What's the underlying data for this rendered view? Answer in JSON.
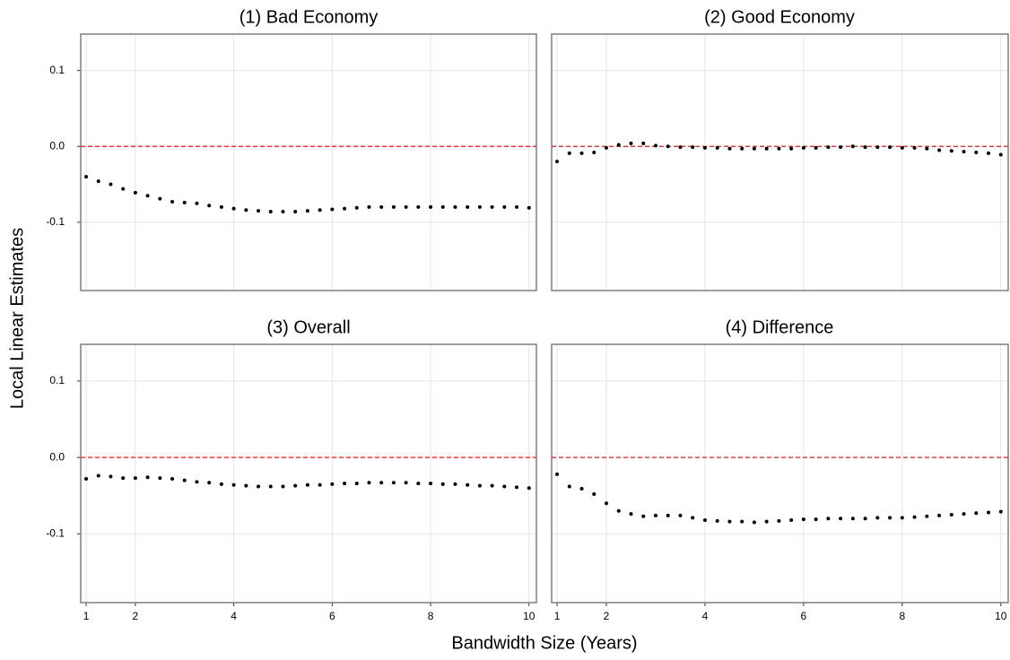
{
  "ylabel": "Local Linear Estimates",
  "xlabel": "Bandwidth Size (Years)",
  "chart_data": [
    {
      "type": "scatter",
      "title": "(1) Bad Economy",
      "color": "#000000",
      "x": [
        1,
        1.25,
        1.5,
        1.75,
        2,
        2.25,
        2.5,
        2.75,
        3,
        3.25,
        3.5,
        3.75,
        4,
        4.25,
        4.5,
        4.75,
        5,
        5.25,
        5.5,
        5.75,
        6,
        6.25,
        6.5,
        6.75,
        7,
        7.25,
        7.5,
        7.75,
        8,
        8.25,
        8.5,
        8.75,
        9,
        9.25,
        9.5,
        9.75,
        10
      ],
      "values": [
        -0.04,
        -0.046,
        -0.05,
        -0.056,
        -0.061,
        -0.065,
        -0.069,
        -0.073,
        -0.074,
        -0.075,
        -0.078,
        -0.08,
        -0.082,
        -0.084,
        -0.085,
        -0.086,
        -0.086,
        -0.086,
        -0.085,
        -0.084,
        -0.083,
        -0.082,
        -0.081,
        -0.08,
        -0.08,
        -0.08,
        -0.08,
        -0.08,
        -0.08,
        -0.08,
        -0.08,
        -0.08,
        -0.08,
        -0.08,
        -0.08,
        -0.08,
        -0.081
      ],
      "xlim": [
        0.89,
        10.15
      ],
      "ylim": [
        -0.19,
        0.148
      ],
      "xticks": [
        1,
        2,
        4,
        6,
        8,
        10
      ],
      "yticks": [
        0.1,
        {
          "value": 0,
          "label": "0.0"
        },
        -0.1
      ],
      "reference_line": {
        "value": 0,
        "color": "#e41a1c"
      }
    },
    {
      "type": "scatter",
      "title": "(2) Good Economy",
      "color": "#000000",
      "x": [
        1,
        1.25,
        1.5,
        1.75,
        2,
        2.25,
        2.5,
        2.75,
        3,
        3.25,
        3.5,
        3.75,
        4,
        4.25,
        4.5,
        4.75,
        5,
        5.25,
        5.5,
        5.75,
        6,
        6.25,
        6.5,
        6.75,
        7,
        7.25,
        7.5,
        7.75,
        8,
        8.25,
        8.5,
        8.75,
        9,
        9.25,
        9.5,
        9.75,
        10
      ],
      "values": [
        -0.02,
        -0.009,
        -0.009,
        -0.008,
        -0.002,
        0.002,
        0.004,
        0.004,
        0.001,
        0,
        -0.001,
        -0.001,
        -0.002,
        -0.002,
        -0.003,
        -0.003,
        -0.003,
        -0.003,
        -0.003,
        -0.003,
        -0.002,
        -0.002,
        -0.001,
        -0.001,
        0,
        -0.001,
        -0.001,
        -0.001,
        -0.002,
        -0.002,
        -0.003,
        -0.005,
        -0.006,
        -0.007,
        -0.008,
        -0.009,
        -0.011
      ],
      "xlim": [
        0.89,
        10.15
      ],
      "ylim": [
        -0.19,
        0.148
      ],
      "xticks": [
        1,
        2,
        4,
        6,
        8,
        10
      ],
      "yticks": [
        0.1,
        {
          "value": 0,
          "label": "0.0"
        },
        -0.1
      ],
      "reference_line": {
        "value": 0,
        "color": "#e41a1c"
      }
    },
    {
      "type": "scatter",
      "title": "(3) Overall",
      "color": "#000000",
      "x": [
        1,
        1.25,
        1.5,
        1.75,
        2,
        2.25,
        2.5,
        2.75,
        3,
        3.25,
        3.5,
        3.75,
        4,
        4.25,
        4.5,
        4.75,
        5,
        5.25,
        5.5,
        5.75,
        6,
        6.25,
        6.5,
        6.75,
        7,
        7.25,
        7.5,
        7.75,
        8,
        8.25,
        8.5,
        8.75,
        9,
        9.25,
        9.5,
        9.75,
        10
      ],
      "values": [
        -0.028,
        -0.024,
        -0.025,
        -0.027,
        -0.027,
        -0.026,
        -0.027,
        -0.028,
        -0.03,
        -0.032,
        -0.033,
        -0.035,
        -0.036,
        -0.037,
        -0.038,
        -0.038,
        -0.038,
        -0.037,
        -0.036,
        -0.036,
        -0.035,
        -0.034,
        -0.034,
        -0.033,
        -0.033,
        -0.033,
        -0.033,
        -0.034,
        -0.034,
        -0.035,
        -0.035,
        -0.036,
        -0.037,
        -0.037,
        -0.038,
        -0.039,
        -0.04
      ],
      "xlim": [
        0.89,
        10.15
      ],
      "ylim": [
        -0.19,
        0.148
      ],
      "xticks": [
        1,
        2,
        4,
        6,
        8,
        10
      ],
      "yticks": [
        0.1,
        {
          "value": 0,
          "label": "0.0"
        },
        -0.1
      ],
      "reference_line": {
        "value": 0,
        "color": "#e41a1c"
      }
    },
    {
      "type": "scatter",
      "title": "(4) Difference",
      "color": "#000000",
      "x": [
        1,
        1.25,
        1.5,
        1.75,
        2,
        2.25,
        2.5,
        2.75,
        3,
        3.25,
        3.5,
        3.75,
        4,
        4.25,
        4.5,
        4.75,
        5,
        5.25,
        5.5,
        5.75,
        6,
        6.25,
        6.5,
        6.75,
        7,
        7.25,
        7.5,
        7.75,
        8,
        8.25,
        8.5,
        8.75,
        9,
        9.25,
        9.5,
        9.75,
        10
      ],
      "values": [
        -0.022,
        -0.038,
        -0.041,
        -0.048,
        -0.06,
        -0.07,
        -0.074,
        -0.077,
        -0.076,
        -0.076,
        -0.076,
        -0.079,
        -0.082,
        -0.083,
        -0.084,
        -0.084,
        -0.085,
        -0.084,
        -0.083,
        -0.082,
        -0.081,
        -0.081,
        -0.08,
        -0.08,
        -0.08,
        -0.08,
        -0.079,
        -0.079,
        -0.079,
        -0.078,
        -0.077,
        -0.076,
        -0.075,
        -0.074,
        -0.073,
        -0.072,
        -0.071
      ],
      "xlim": [
        0.89,
        10.15
      ],
      "ylim": [
        -0.19,
        0.148
      ],
      "xticks": [
        1,
        2,
        4,
        6,
        8,
        10
      ],
      "yticks": [
        0.1,
        {
          "value": 0,
          "label": "0.0"
        },
        -0.1
      ],
      "reference_line": {
        "value": 0,
        "color": "#e41a1c"
      }
    }
  ]
}
